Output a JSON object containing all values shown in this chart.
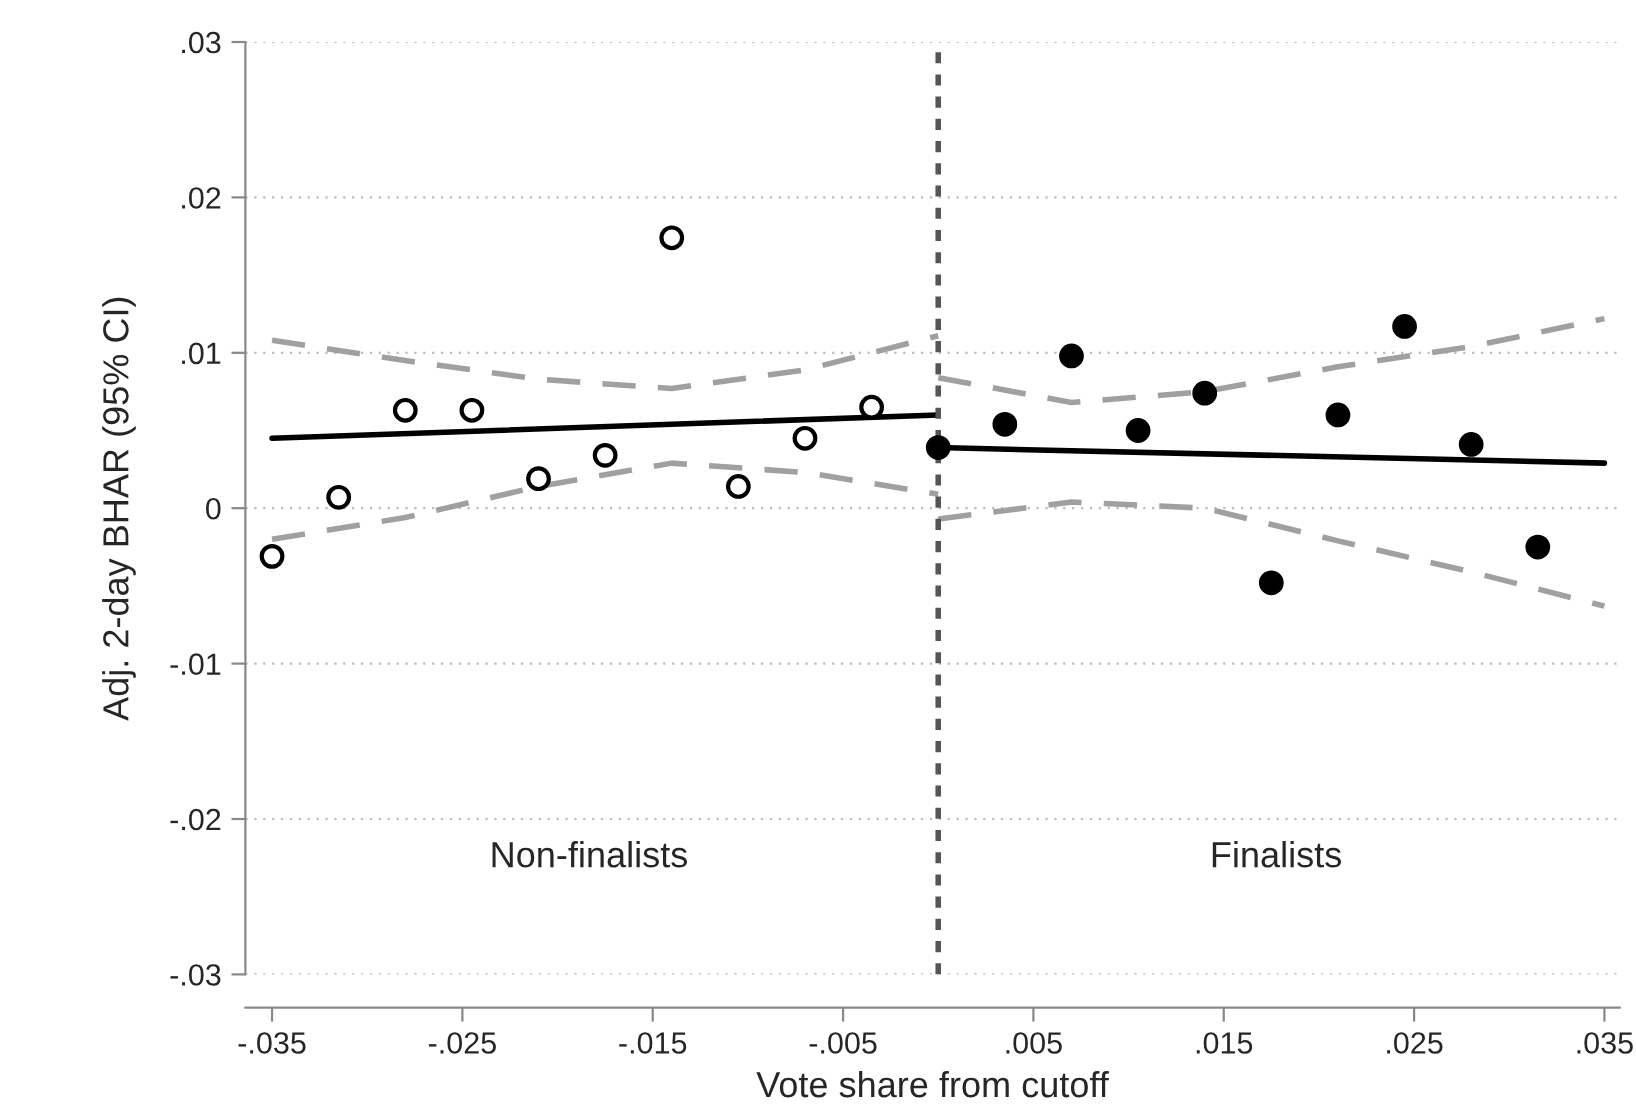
{
  "chart_data": {
    "type": "scatter",
    "xlabel": "Vote share from cutoff",
    "ylabel": "Adj. 2-day BHAR (95% CI)",
    "xlim": [
      -0.0364,
      0.0358
    ],
    "ylim": [
      -0.03,
      0.03
    ],
    "xticks": [
      {
        "value": -0.035,
        "label": "-.035"
      },
      {
        "value": -0.025,
        "label": "-.025"
      },
      {
        "value": -0.015,
        "label": "-.015"
      },
      {
        "value": -0.005,
        "label": "-.005"
      },
      {
        "value": 0.005,
        "label": ".005"
      },
      {
        "value": 0.015,
        "label": ".015"
      },
      {
        "value": 0.025,
        "label": ".025"
      },
      {
        "value": 0.035,
        "label": ".035"
      }
    ],
    "yticks": [
      {
        "value": -0.03,
        "label": "-.03"
      },
      {
        "value": -0.02,
        "label": "-.02"
      },
      {
        "value": -0.01,
        "label": "-.01"
      },
      0,
      {
        "value": 0.01,
        "label": ".01"
      },
      {
        "value": 0.02,
        "label": ".02"
      },
      {
        "value": 0.03,
        "label": ".03"
      }
    ],
    "grid": "y",
    "ref_lines": [
      {
        "axis": "x",
        "value": 0,
        "color": "#555555",
        "line_style": "dotted"
      }
    ],
    "annotations": [
      "Non-finalists",
      "Finalists"
    ],
    "series": [
      {
        "type": "line",
        "color": "#a0a0a0",
        "line_style": "dashed",
        "x": [
          -0.035,
          -0.028,
          -0.021,
          -0.014,
          -0.007,
          0
        ],
        "values": [
          0.0108,
          0.0095,
          0.0083,
          0.0077,
          0.0089,
          0.0111
        ]
      },
      {
        "type": "line",
        "color": "#a0a0a0",
        "line_style": "dashed",
        "x": [
          -0.035,
          -0.028,
          -0.021,
          -0.014,
          -0.007,
          0
        ],
        "values": [
          -0.002,
          -0.0006,
          0.0014,
          0.0029,
          0.0023,
          0.0009
        ]
      },
      {
        "type": "line",
        "color": "#a0a0a0",
        "line_style": "dashed",
        "x": [
          0,
          0.007,
          0.014,
          0.021,
          0.028,
          0.035
        ],
        "values": [
          0.0084,
          0.0068,
          0.0075,
          0.0091,
          0.0104,
          0.0122
        ]
      },
      {
        "type": "line",
        "color": "#a0a0a0",
        "line_style": "dashed",
        "x": [
          0,
          0.007,
          0.014,
          0.021,
          0.028,
          0.035
        ],
        "values": [
          -0.0007,
          0.0004,
          0.0,
          -0.0021,
          -0.0041,
          -0.0063
        ]
      },
      {
        "type": "line",
        "color": "#000000",
        "line_style": "solid",
        "x": [
          -0.035,
          0
        ],
        "values": [
          0.0045,
          0.006
        ]
      },
      {
        "type": "line",
        "color": "#000000",
        "line_style": "solid",
        "x": [
          0,
          0.035
        ],
        "values": [
          0.0039,
          0.0029
        ]
      },
      {
        "color": "#ffffff",
        "marker": "circle",
        "x": [
          -0.035,
          -0.0315,
          -0.028,
          -0.0245,
          -0.021,
          -0.0175,
          -0.014,
          -0.0105,
          -0.007,
          -0.0035
        ],
        "values": [
          -0.0031,
          0.0007,
          0.0063,
          0.0063,
          0.0019,
          0.0034,
          0.0174,
          0.0014,
          0.0045,
          0.0065
        ]
      },
      {
        "color": "#000000",
        "marker": "circle",
        "x": [
          0,
          0.0035,
          0.007,
          0.0105,
          0.014,
          0.0175,
          0.021,
          0.0245,
          0.028,
          0.0315
        ],
        "values": [
          0.0039,
          0.0054,
          0.0098,
          0.005,
          0.0074,
          -0.0048,
          0.006,
          0.0117,
          0.0041,
          -0.0025
        ]
      }
    ]
  }
}
